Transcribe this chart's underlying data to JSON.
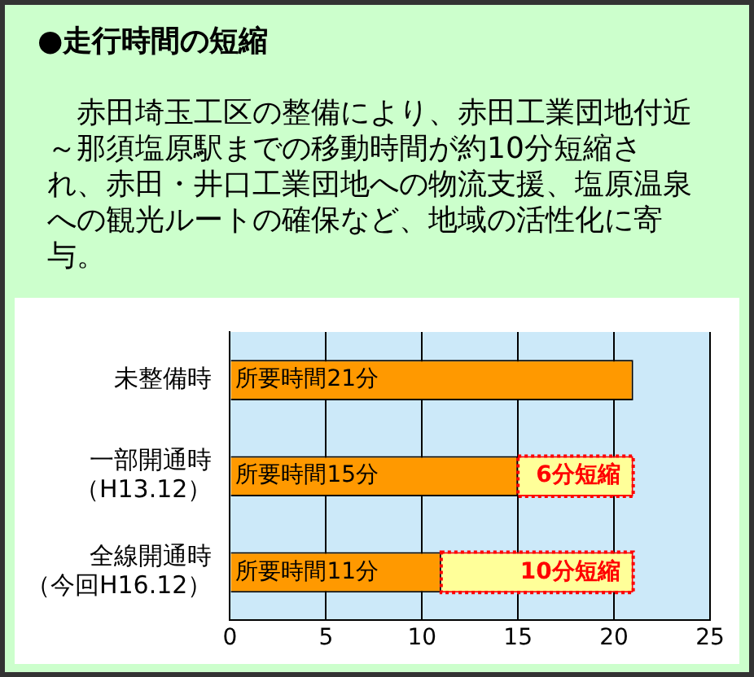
{
  "chart_data": {
    "type": "bar",
    "orientation": "horizontal",
    "stacked": true,
    "title": "●走行時間の短縮",
    "subtitle": "赤田埼玉工区の整備により、赤田工業団地付近～那須塩原駅までの移動時間が約10分短縮され、赤田・井口工業団地への物流支援、塩原温泉への観光ルートの確保など、地域の活性化に寄与。",
    "categories": [
      "未整備時",
      "一部開通時（H13.12）",
      "全線開通時（今回H16.12）"
    ],
    "series": [
      {
        "color": "#ff9900",
        "values": [
          21,
          15,
          11
        ],
        "value_labels": [
          "所要時間21分",
          "所要時間15分",
          "所要時間11分"
        ]
      },
      {
        "color": "#ffff99",
        "line_style": "dotted",
        "values": [
          null,
          6,
          10
        ],
        "value_labels": [
          null,
          "6分短縮",
          "10分短縮"
        ]
      }
    ],
    "xlim": [
      0,
      25
    ],
    "xticks": [
      0,
      5,
      10,
      15,
      20,
      25
    ],
    "grid": "x",
    "legend": false
  }
}
